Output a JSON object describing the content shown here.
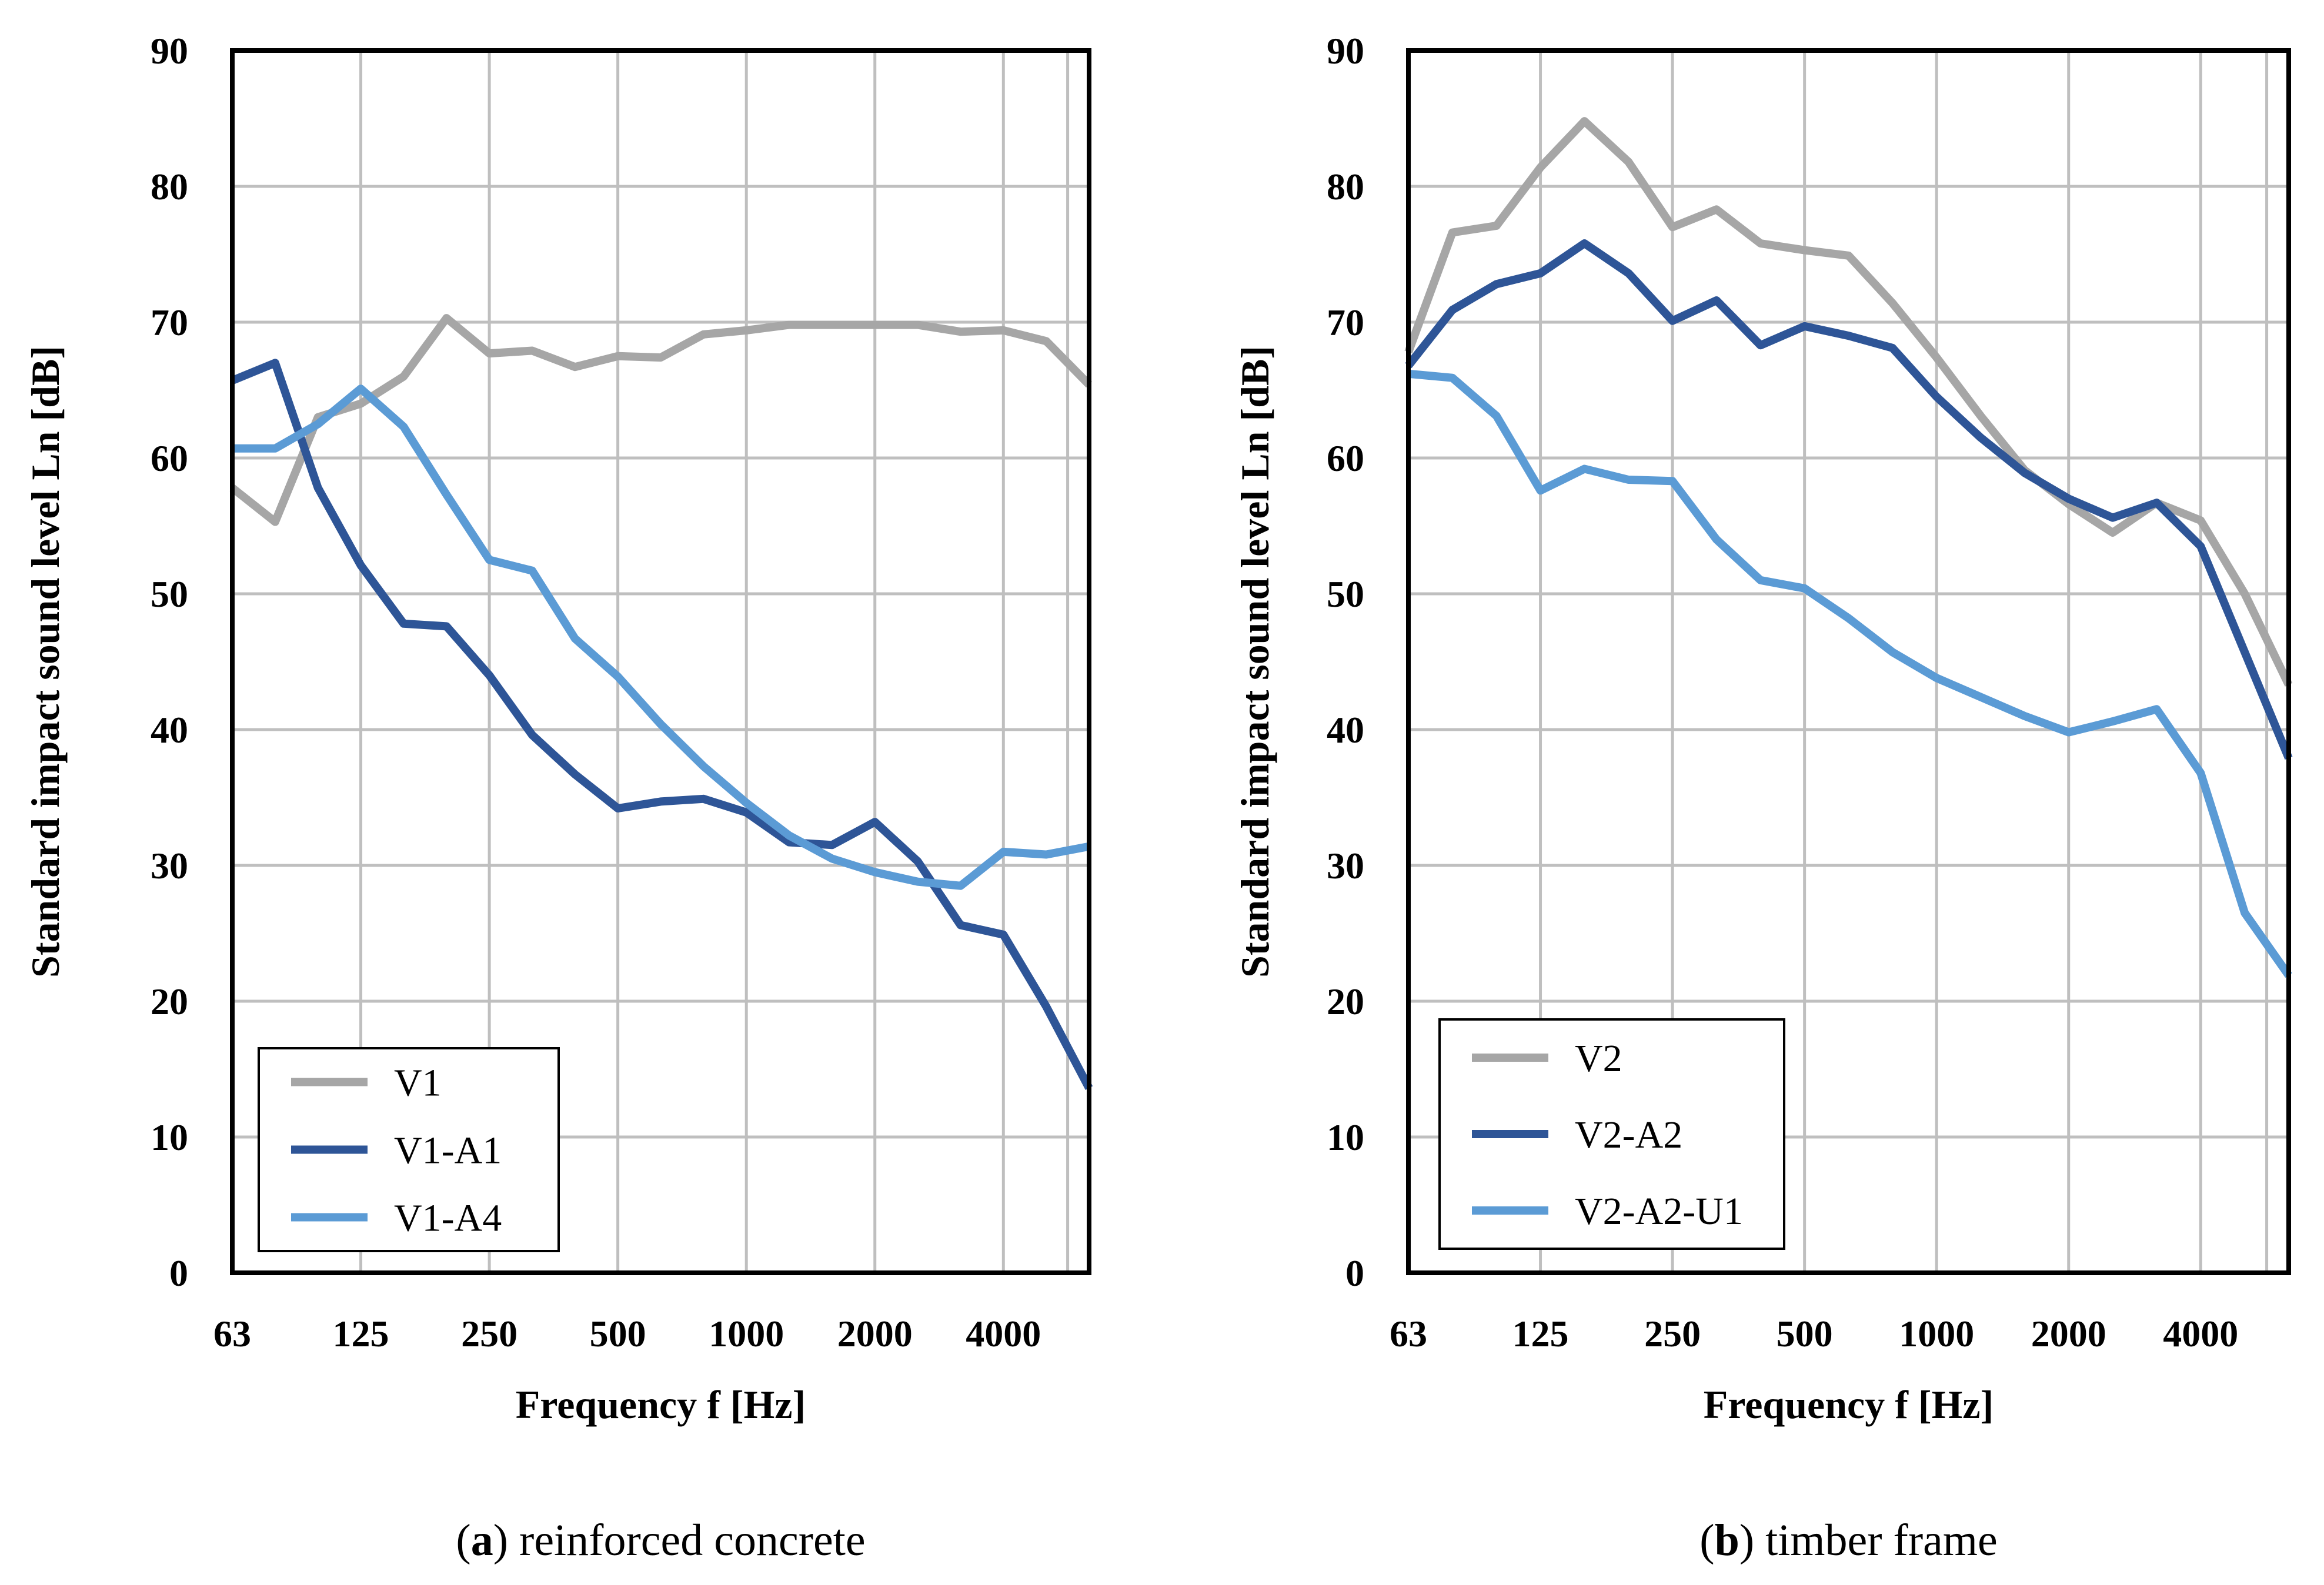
{
  "chart_data": [
    {
      "type": "line",
      "caption_letter": "a",
      "caption_text": "reinforced concrete",
      "xlabel": "Frequency f [Hz]",
      "ylabel": "Standard impact sound level Ln [dB]",
      "ylim": [
        0,
        90
      ],
      "yticks": [
        0,
        10,
        20,
        30,
        40,
        50,
        60,
        70,
        80,
        90
      ],
      "x_band_count": 21,
      "x_ticks": [
        {
          "band": 0,
          "label": "63"
        },
        {
          "band": 3,
          "label": "125"
        },
        {
          "band": 6,
          "label": "250"
        },
        {
          "band": 9,
          "label": "500"
        },
        {
          "band": 12,
          "label": "1000"
        },
        {
          "band": 15,
          "label": "2000"
        },
        {
          "band": 18,
          "label": "4000"
        }
      ],
      "x": [
        "63",
        "80",
        "100",
        "125",
        "160",
        "200",
        "250",
        "315",
        "400",
        "500",
        "630",
        "800",
        "1000",
        "1250",
        "1600",
        "2000",
        "2500",
        "3150",
        "4000",
        "5000",
        "6300"
      ],
      "grid": true,
      "legend_position": "bottom-left",
      "series": [
        {
          "name": "V1",
          "color": "#a6a6a6",
          "values": [
            57.8,
            55.3,
            63.0,
            64.0,
            66.0,
            70.3,
            67.7,
            67.9,
            66.7,
            67.5,
            67.4,
            69.1,
            69.4,
            69.8,
            69.8,
            69.8,
            69.8,
            69.3,
            69.4,
            68.6,
            65.4
          ]
        },
        {
          "name": "V1-A1",
          "color": "#2e5597",
          "values": [
            65.7,
            67.0,
            57.8,
            52.1,
            47.8,
            47.6,
            44.0,
            39.6,
            36.7,
            34.2,
            34.7,
            34.9,
            33.9,
            31.7,
            31.5,
            33.2,
            30.3,
            25.6,
            24.9,
            19.6,
            13.6
          ]
        },
        {
          "name": "V1-A4",
          "color": "#5b9bd5",
          "values": [
            60.7,
            60.7,
            62.5,
            65.1,
            62.3,
            57.3,
            52.5,
            51.7,
            46.7,
            43.9,
            40.4,
            37.3,
            34.6,
            32.2,
            30.5,
            29.5,
            28.8,
            28.5,
            31.0,
            30.8,
            31.4
          ]
        }
      ]
    },
    {
      "type": "line",
      "caption_letter": "b",
      "caption_text": "timber frame",
      "xlabel": "Frequency f [Hz]",
      "ylabel": "Standard impact sound level Ln [dB]",
      "ylim": [
        0,
        90
      ],
      "yticks": [
        0,
        10,
        20,
        30,
        40,
        50,
        60,
        70,
        80,
        90
      ],
      "x_band_count": 21,
      "x_ticks": [
        {
          "band": 0,
          "label": "63"
        },
        {
          "band": 3,
          "label": "125"
        },
        {
          "band": 6,
          "label": "250"
        },
        {
          "band": 9,
          "label": "500"
        },
        {
          "band": 12,
          "label": "1000"
        },
        {
          "band": 15,
          "label": "2000"
        },
        {
          "band": 18,
          "label": "4000"
        }
      ],
      "x": [
        "63",
        "80",
        "100",
        "125",
        "160",
        "200",
        "250",
        "315",
        "400",
        "500",
        "630",
        "800",
        "1000",
        "1250",
        "1600",
        "2000",
        "2500",
        "3150",
        "4000",
        "5000",
        "6300"
      ],
      "grid": true,
      "legend_position": "bottom-left",
      "series": [
        {
          "name": "V2",
          "color": "#a6a6a6",
          "values": [
            67.8,
            76.6,
            77.1,
            81.4,
            84.8,
            81.8,
            77.0,
            78.3,
            75.8,
            75.3,
            74.9,
            71.4,
            67.4,
            63.1,
            59.1,
            56.6,
            54.5,
            56.7,
            55.4,
            50.0,
            43.3
          ]
        },
        {
          "name": "V2-A2",
          "color": "#2e5597",
          "values": [
            66.8,
            70.9,
            72.8,
            73.6,
            75.8,
            73.6,
            70.1,
            71.6,
            68.3,
            69.7,
            69.0,
            68.1,
            64.5,
            61.5,
            58.9,
            57.0,
            55.6,
            56.7,
            53.5,
            45.7,
            37.9
          ]
        },
        {
          "name": "V2-A2-U1",
          "color": "#5b9bd5",
          "values": [
            66.2,
            65.9,
            63.1,
            57.6,
            59.2,
            58.4,
            58.3,
            54.0,
            51.0,
            50.4,
            48.2,
            45.7,
            43.8,
            42.4,
            41.0,
            39.8,
            40.6,
            41.5,
            36.8,
            26.5,
            21.9
          ]
        }
      ]
    }
  ]
}
